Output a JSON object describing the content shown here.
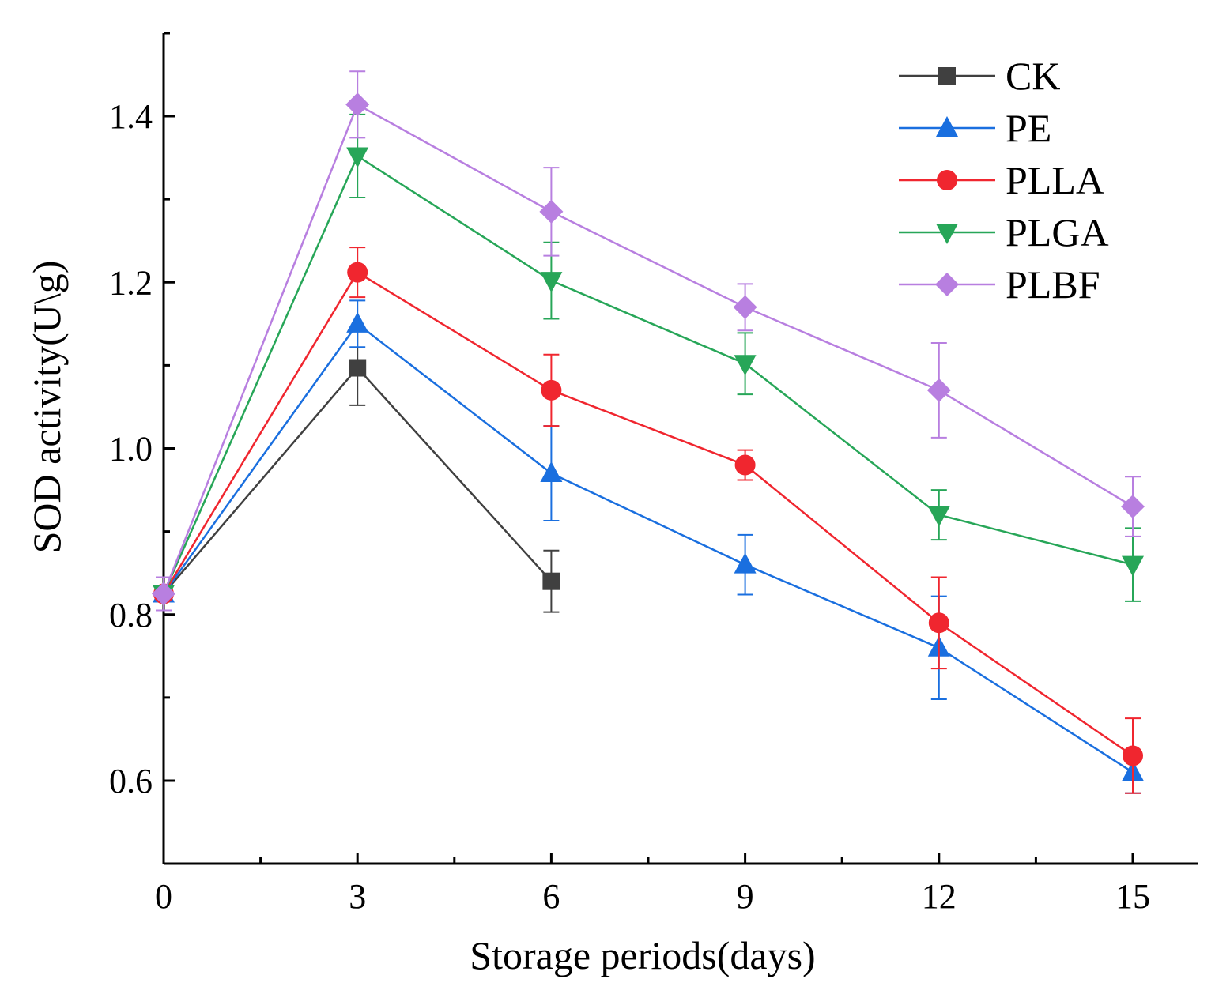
{
  "chart_data": {
    "type": "line",
    "title": "",
    "xlabel": "Storage periods(days)",
    "ylabel": "SOD activity(U\\g)",
    "xlim": [
      0,
      16
    ],
    "ylim": [
      0.5,
      1.5
    ],
    "x_ticks": [
      0,
      3,
      6,
      9,
      12,
      15
    ],
    "x_minor_ticks": [
      1.5,
      4.5,
      7.5,
      10.5,
      13.5
    ],
    "y_ticks": [
      0.6,
      0.8,
      1.0,
      1.2,
      1.4
    ],
    "y_tick_labels": [
      "0.6",
      "0.8",
      "1.0",
      "1.2",
      "1.4"
    ],
    "y_minor_ticks": [
      0.7,
      0.9,
      1.1,
      1.3
    ],
    "grid": false,
    "legend_position": "top-right",
    "series": [
      {
        "name": "CK",
        "color": "#404040",
        "marker": "square",
        "x": [
          0,
          3,
          6
        ],
        "values": [
          0.825,
          1.097,
          0.84
        ],
        "errors": [
          0.02,
          0.045,
          0.037
        ]
      },
      {
        "name": "PE",
        "color": "#1a6fdf",
        "marker": "triangle-up",
        "x": [
          0,
          3,
          6,
          9,
          12,
          15
        ],
        "values": [
          0.825,
          1.15,
          0.97,
          0.86,
          0.76,
          0.61
        ],
        "errors": [
          0.02,
          0.028,
          0.057,
          0.036,
          0.062,
          0.025
        ]
      },
      {
        "name": "PLLA",
        "color": "#f0262f",
        "marker": "circle",
        "x": [
          0,
          3,
          6,
          9,
          12,
          15
        ],
        "values": [
          0.825,
          1.212,
          1.07,
          0.98,
          0.79,
          0.63
        ],
        "errors": [
          0.02,
          0.03,
          0.043,
          0.018,
          0.055,
          0.045
        ]
      },
      {
        "name": "PLGA",
        "color": "#27a658",
        "marker": "triangle-down",
        "x": [
          0,
          3,
          6,
          9,
          12,
          15
        ],
        "values": [
          0.825,
          1.352,
          1.202,
          1.102,
          0.92,
          0.86
        ],
        "errors": [
          0.02,
          0.05,
          0.046,
          0.037,
          0.03,
          0.044
        ]
      },
      {
        "name": "PLBF",
        "color": "#b87fe0",
        "marker": "diamond",
        "x": [
          0,
          3,
          6,
          9,
          12,
          15
        ],
        "values": [
          0.825,
          1.414,
          1.285,
          1.17,
          1.07,
          0.93
        ],
        "errors": [
          0.02,
          0.04,
          0.053,
          0.028,
          0.057,
          0.036
        ]
      }
    ]
  }
}
